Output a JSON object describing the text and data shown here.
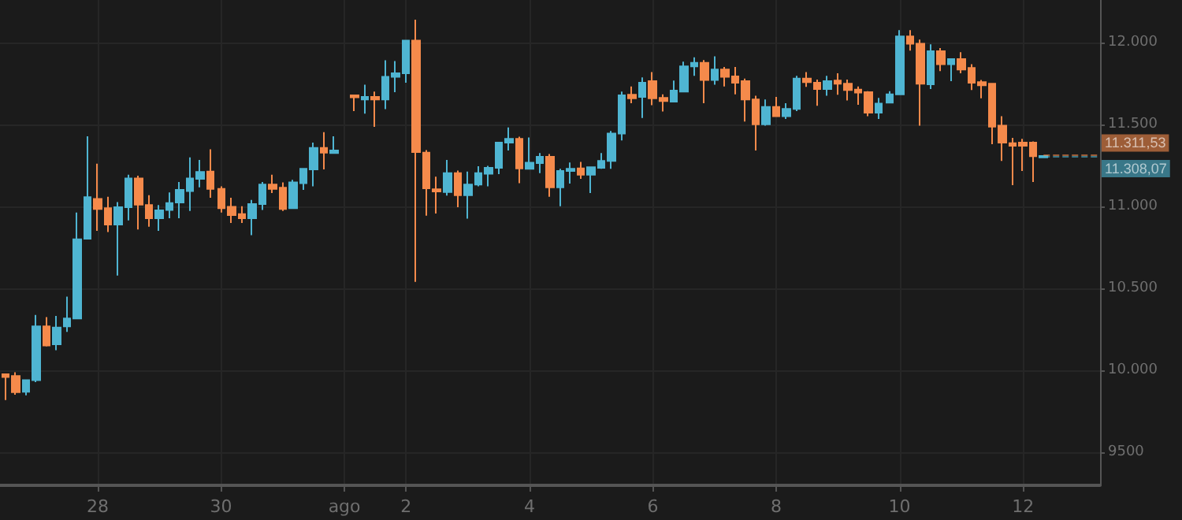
{
  "chart_data": {
    "type": "candlestick",
    "x": [
      "--07-26T12:00",
      "--07-26T16:00",
      "--07-26T20:00",
      "--07-27T00:00",
      "--07-27T04:00",
      "--07-27T08:00",
      "--07-27T12:00",
      "--07-27T16:00",
      "--07-27T20:00",
      "--07-28T00:00",
      "--07-28T04:00",
      "--07-28T08:00",
      "--07-28T12:00",
      "--07-28T16:00",
      "--07-28T20:00",
      "--07-29T00:00",
      "--07-29T04:00",
      "--07-29T08:00",
      "--07-29T12:00",
      "--07-29T16:00",
      "--07-29T20:00",
      "--07-30T00:00",
      "--07-30T04:00",
      "--07-30T08:00",
      "--07-30T12:00",
      "--07-30T16:00",
      "--07-30T20:00",
      "--07-31T00:00",
      "--07-31T04:00",
      "--07-31T08:00",
      "--07-31T12:00",
      "--07-31T16:00",
      "--07-31T20:00",
      "--08-01T04:00",
      "--08-01T08:00",
      "--08-01T12:00",
      "--08-01T16:00",
      "--08-01T20:00",
      "--08-02T00:00",
      "--08-02T04:00",
      "--08-02T08:00",
      "--08-02T12:00",
      "--08-02T16:00",
      "--08-02T20:00",
      "--08-03T00:00",
      "--08-03T04:00",
      "--08-03T08:00",
      "--08-03T12:00",
      "--08-03T16:00",
      "--08-03T20:00",
      "--08-04T00:00",
      "--08-04T04:00",
      "--08-04T08:00",
      "--08-04T12:00",
      "--08-04T16:00",
      "--08-04T20:00",
      "--08-05T00:00",
      "--08-05T04:00",
      "--08-05T08:00",
      "--08-05T12:00",
      "--08-05T16:00",
      "--08-05T20:00",
      "--08-06T00:00",
      "--08-06T04:00",
      "--08-06T08:00",
      "--08-06T12:00",
      "--08-06T16:00",
      "--08-06T20:00",
      "--08-07T00:00",
      "--08-07T04:00",
      "--08-07T08:00",
      "--08-07T12:00",
      "--08-07T16:00",
      "--08-07T20:00",
      "--08-08T00:00",
      "--08-08T04:00",
      "--08-08T08:00",
      "--08-08T12:00",
      "--08-08T16:00",
      "--08-08T20:00",
      "--08-09T00:00",
      "--08-09T04:00",
      "--08-09T08:00",
      "--08-09T12:00",
      "--08-09T16:00",
      "--08-09T20:00",
      "--08-10T00:00",
      "--08-10T04:00",
      "--08-10T08:00",
      "--08-10T12:00",
      "--08-10T16:00",
      "--08-10T20:00",
      "--08-11T00:00",
      "--08-11T04:00",
      "--08-11T08:00",
      "--08-11T12:00",
      "--08-11T16:00",
      "--08-11T20:00",
      "--08-12T00:00",
      "--08-12T04:00",
      "--08-12T08:00"
    ],
    "ohlc": [
      [
        9977,
        9977,
        9820,
        9961
      ],
      [
        9967,
        9990,
        9852,
        9868
      ],
      [
        9871,
        9942,
        9849,
        9942
      ],
      [
        9942,
        10339,
        9929,
        10269
      ],
      [
        10269,
        10326,
        10147,
        10153
      ],
      [
        10160,
        10333,
        10124,
        10262
      ],
      [
        10269,
        10451,
        10236,
        10317
      ],
      [
        10317,
        10964,
        10317,
        10801
      ],
      [
        10804,
        11429,
        10804,
        11057
      ],
      [
        11047,
        11262,
        10852,
        10986
      ],
      [
        10990,
        11060,
        10845,
        10890
      ],
      [
        10890,
        11028,
        10579,
        10996
      ],
      [
        10996,
        11195,
        10916,
        11172
      ],
      [
        11172,
        11188,
        10861,
        11012
      ],
      [
        11009,
        11070,
        10877,
        10929
      ],
      [
        10929,
        11009,
        10852,
        10977
      ],
      [
        10980,
        11086,
        10929,
        11022
      ],
      [
        11025,
        11150,
        10929,
        11102
      ],
      [
        11095,
        11300,
        10974,
        11172
      ],
      [
        11169,
        11285,
        11118,
        11211
      ],
      [
        11214,
        11349,
        11054,
        11108
      ],
      [
        11108,
        11124,
        10964,
        10990
      ],
      [
        10999,
        11054,
        10900,
        10948
      ],
      [
        10954,
        11002,
        10900,
        10929
      ],
      [
        10929,
        11041,
        10826,
        11015
      ],
      [
        11015,
        11150,
        10980,
        11134
      ],
      [
        11134,
        11195,
        11083,
        11108
      ],
      [
        11115,
        11147,
        10974,
        10986
      ],
      [
        10990,
        11163,
        10990,
        11147
      ],
      [
        11143,
        11230,
        11102,
        11230
      ],
      [
        11227,
        11390,
        11124,
        11358
      ],
      [
        11358,
        11454,
        11227,
        11329
      ],
      [
        11326,
        11429,
        11326,
        11342
      ],
      [
        11679,
        11679,
        11583,
        11666
      ],
      [
        11653,
        11743,
        11567,
        11669
      ],
      [
        11669,
        11701,
        11486,
        11653
      ],
      [
        11653,
        11893,
        11595,
        11791
      ],
      [
        11791,
        11887,
        11698,
        11813
      ],
      [
        11813,
        12012,
        11756,
        12012
      ],
      [
        12012,
        12140,
        10541,
        11333
      ],
      [
        11329,
        11345,
        10945,
        11111
      ],
      [
        11105,
        11182,
        10958,
        11092
      ],
      [
        11089,
        11285,
        11067,
        11204
      ],
      [
        11204,
        11220,
        10996,
        11070
      ],
      [
        11070,
        11214,
        10926,
        11134
      ],
      [
        11134,
        11246,
        11124,
        11204
      ],
      [
        11201,
        11249,
        11124,
        11236
      ],
      [
        11236,
        11390,
        11198,
        11390
      ],
      [
        11390,
        11483,
        11342,
        11413
      ],
      [
        11413,
        11426,
        11143,
        11233
      ],
      [
        11230,
        11422,
        11227,
        11268
      ],
      [
        11265,
        11326,
        11204,
        11304
      ],
      [
        11304,
        11320,
        11060,
        11118
      ],
      [
        11118,
        11230,
        11002,
        11217
      ],
      [
        11217,
        11269,
        11140,
        11230
      ],
      [
        11233,
        11272,
        11169,
        11195
      ],
      [
        11195,
        11240,
        11083,
        11240
      ],
      [
        11236,
        11326,
        11230,
        11278
      ],
      [
        11278,
        11461,
        11230,
        11445
      ],
      [
        11445,
        11701,
        11403,
        11679
      ],
      [
        11682,
        11733,
        11631,
        11660
      ],
      [
        11669,
        11788,
        11541,
        11756
      ],
      [
        11765,
        11820,
        11618,
        11660
      ],
      [
        11663,
        11685,
        11580,
        11644
      ],
      [
        11640,
        11769,
        11640,
        11708
      ],
      [
        11701,
        11884,
        11701,
        11855
      ],
      [
        11855,
        11910,
        11797,
        11877
      ],
      [
        11877,
        11894,
        11631,
        11772
      ],
      [
        11772,
        11916,
        11743,
        11836
      ],
      [
        11836,
        11852,
        11733,
        11791
      ],
      [
        11794,
        11852,
        11685,
        11756
      ],
      [
        11765,
        11781,
        11519,
        11653
      ],
      [
        11653,
        11676,
        11342,
        11502
      ],
      [
        11502,
        11653,
        11493,
        11608
      ],
      [
        11608,
        11669,
        11551,
        11551
      ],
      [
        11551,
        11631,
        11535,
        11596
      ],
      [
        11596,
        11797,
        11583,
        11781
      ],
      [
        11781,
        11820,
        11730,
        11759
      ],
      [
        11756,
        11775,
        11615,
        11717
      ],
      [
        11717,
        11797,
        11676,
        11765
      ],
      [
        11769,
        11813,
        11682,
        11749
      ],
      [
        11749,
        11775,
        11647,
        11711
      ],
      [
        11714,
        11733,
        11621,
        11695
      ],
      [
        11698,
        11704,
        11551,
        11573
      ],
      [
        11573,
        11663,
        11535,
        11628
      ],
      [
        11634,
        11704,
        11634,
        11685
      ],
      [
        11685,
        12076,
        11685,
        12038
      ],
      [
        12038,
        12076,
        11951,
        11993
      ],
      [
        11993,
        12019,
        11493,
        11749
      ],
      [
        11746,
        11990,
        11717,
        11948
      ],
      [
        11948,
        11967,
        11826,
        11868
      ],
      [
        11868,
        11900,
        11765,
        11900
      ],
      [
        11900,
        11942,
        11813,
        11836
      ],
      [
        11845,
        11868,
        11711,
        11756
      ],
      [
        11759,
        11772,
        11660,
        11740
      ],
      [
        11749,
        11749,
        11381,
        11487
      ],
      [
        11493,
        11551,
        11278,
        11390
      ],
      [
        11387,
        11419,
        11131,
        11371
      ],
      [
        11390,
        11413,
        11217,
        11371
      ],
      [
        11390,
        11397,
        11150,
        11307
      ],
      [
        11300,
        11312,
        11298,
        11308
      ]
    ],
    "colors": [
      "#f58a4b",
      "#f58a4b",
      "#4fb5d2",
      "#4fb5d2",
      "#f58a4b",
      "#4fb5d2",
      "#4fb5d2",
      "#4fb5d2",
      "#4fb5d2",
      "#f58a4b",
      "#f58a4b",
      "#4fb5d2",
      "#4fb5d2",
      "#f58a4b",
      "#f58a4b",
      "#4fb5d2",
      "#4fb5d2",
      "#4fb5d2",
      "#4fb5d2",
      "#4fb5d2",
      "#f58a4b",
      "#f58a4b",
      "#f58a4b",
      "#f58a4b",
      "#4fb5d2",
      "#4fb5d2",
      "#f58a4b",
      "#f58a4b",
      "#4fb5d2",
      "#4fb5d2",
      "#4fb5d2",
      "#f58a4b",
      "#4fb5d2",
      "#f58a4b",
      "#4fb5d2",
      "#f58a4b",
      "#4fb5d2",
      "#4fb5d2",
      "#4fb5d2",
      "#f58a4b",
      "#f58a4b",
      "#f58a4b",
      "#4fb5d2",
      "#f58a4b",
      "#4fb5d2",
      "#4fb5d2",
      "#4fb5d2",
      "#4fb5d2",
      "#4fb5d2",
      "#f58a4b",
      "#4fb5d2",
      "#4fb5d2",
      "#f58a4b",
      "#4fb5d2",
      "#4fb5d2",
      "#f58a4b",
      "#4fb5d2",
      "#4fb5d2",
      "#4fb5d2",
      "#4fb5d2",
      "#f58a4b",
      "#4fb5d2",
      "#f58a4b",
      "#f58a4b",
      "#4fb5d2",
      "#4fb5d2",
      "#4fb5d2",
      "#f58a4b",
      "#4fb5d2",
      "#f58a4b",
      "#f58a4b",
      "#f58a4b",
      "#f58a4b",
      "#4fb5d2",
      "#f58a4b",
      "#4fb5d2",
      "#4fb5d2",
      "#f58a4b",
      "#f58a4b",
      "#4fb5d2",
      "#f58a4b",
      "#f58a4b",
      "#f58a4b",
      "#f58a4b",
      "#4fb5d2",
      "#4fb5d2",
      "#4fb5d2",
      "#f58a4b",
      "#f58a4b",
      "#4fb5d2",
      "#f58a4b",
      "#4fb5d2",
      "#f58a4b",
      "#f58a4b",
      "#f58a4b",
      "#f58a4b",
      "#f58a4b",
      "#f58a4b",
      "#f58a4b",
      "#f58a4b",
      "#4fb5d2"
    ],
    "xlim": [
      "--07-26T10:00",
      "--08-13T06:00"
    ],
    "xticks": [
      {
        "value": "--07-28",
        "label": "28"
      },
      {
        "value": "--07-30",
        "label": "30"
      },
      {
        "value": "--08-01",
        "label": "ago"
      },
      {
        "value": "--08-02",
        "label": "2"
      },
      {
        "value": "--08-04",
        "label": "4"
      },
      {
        "value": "--08-06",
        "label": "6"
      },
      {
        "value": "--08-08",
        "label": "8"
      },
      {
        "value": "--08-10",
        "label": "10"
      },
      {
        "value": "--08-12",
        "label": "12"
      }
    ],
    "ylim": [
      9300,
      12260
    ],
    "yticks": [
      9500,
      {
        "value": 10000,
        "label": "10.000"
      },
      {
        "value": 10500,
        "label": "10.500"
      },
      {
        "value": 11000,
        "label": "11.000"
      },
      {
        "value": 11500,
        "label": "11.500"
      },
      {
        "value": 12000,
        "label": "12.000"
      }
    ],
    "grid": true,
    "ref_lines": [
      {
        "axis": "y",
        "value": 11311.53,
        "label": "11.311,53",
        "color": "#f58a4b",
        "line_style": "dashed"
      },
      {
        "axis": "y",
        "value": 11308.07,
        "label": "11.308,07",
        "color": "#4fb5d2",
        "line_style": "dashed"
      }
    ]
  }
}
